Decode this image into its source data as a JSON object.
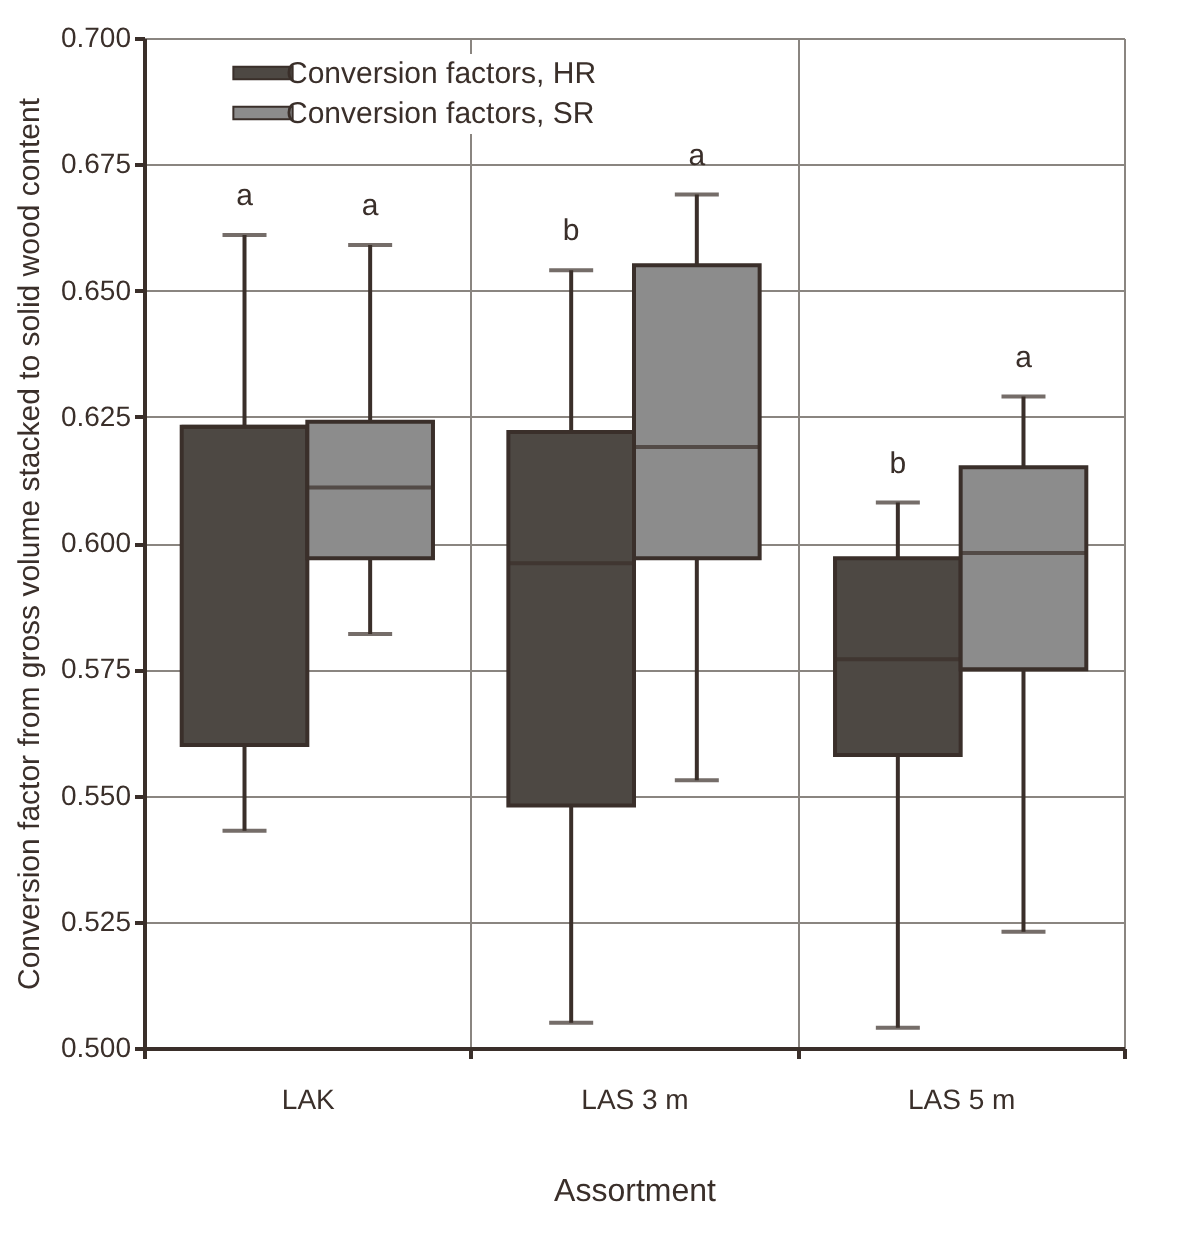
{
  "chart_data": {
    "type": "box",
    "xlabel": "Assortment",
    "ylabel": "Conversion factor from gross volume stacked to solid wood content",
    "categories": [
      "LAK",
      "LAS 3 m",
      "LAS 5 m"
    ],
    "series": [
      {
        "name": "Conversion factors, HR",
        "color": "#4d4843",
        "boxes": [
          {
            "low": 0.543,
            "q1": 0.56,
            "median": 0.623,
            "q3": 0.623,
            "high": 0.661
          },
          {
            "low": 0.505,
            "q1": 0.548,
            "median": 0.596,
            "q3": 0.622,
            "high": 0.654
          },
          {
            "low": 0.504,
            "q1": 0.558,
            "median": 0.577,
            "q3": 0.597,
            "high": 0.608
          }
        ]
      },
      {
        "name": "Conversion factors, SR",
        "color": "#8c8c8c",
        "boxes": [
          {
            "low": 0.582,
            "q1": 0.597,
            "median": 0.611,
            "q3": 0.624,
            "high": 0.659
          },
          {
            "low": 0.553,
            "q1": 0.597,
            "median": 0.619,
            "q3": 0.655,
            "high": 0.669
          },
          {
            "low": 0.523,
            "q1": 0.575,
            "median": 0.598,
            "q3": 0.615,
            "high": 0.629
          }
        ]
      }
    ],
    "ylim": [
      0.5,
      0.7
    ],
    "yticks": [
      {
        "value": 0.5,
        "label": "0.500"
      },
      {
        "value": 0.525,
        "label": "0.525"
      },
      {
        "value": 0.55,
        "label": "0.550"
      },
      {
        "value": 0.575,
        "label": "0.575"
      },
      {
        "value": 0.6,
        "label": "0.600"
      },
      {
        "value": 0.625,
        "label": "0.625"
      },
      {
        "value": 0.65,
        "label": "0.650"
      },
      {
        "value": 0.675,
        "label": "0.675"
      },
      {
        "value": 0.7,
        "label": "0.700"
      }
    ],
    "grid": true,
    "legend": "top left",
    "annotations": [
      "a",
      "a",
      "b",
      "a",
      "b",
      "a"
    ]
  }
}
